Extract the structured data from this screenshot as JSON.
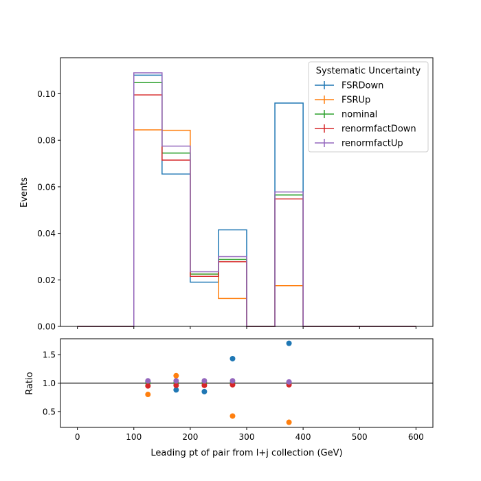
{
  "chart_data": [
    {
      "type": "step",
      "panel": "main",
      "title": "",
      "xlabel": "",
      "ylabel": "Events",
      "xlim": [
        -30,
        630
      ],
      "ylim": [
        0,
        0.1155
      ],
      "xticks": [
        0,
        100,
        200,
        300,
        400,
        500,
        600
      ],
      "yticks": [
        0.0,
        0.02,
        0.04,
        0.06,
        0.08,
        0.1
      ],
      "ytick_labels": [
        "0.00",
        "0.02",
        "0.04",
        "0.06",
        "0.08",
        "0.10"
      ],
      "bin_edges": [
        0,
        50,
        100,
        150,
        200,
        250,
        300,
        350,
        400,
        450,
        500,
        550,
        600
      ],
      "legend": {
        "title": "Systematic Uncertainty",
        "placement": "upper right"
      },
      "series": [
        {
          "name": "FSRDown",
          "color": "#1f77b4",
          "values": [
            0,
            0,
            0.108,
            0.0655,
            0.019,
            0.0415,
            0,
            0.096,
            0,
            0,
            0,
            0
          ]
        },
        {
          "name": "FSRUp",
          "color": "#ff7f0e",
          "values": [
            0,
            0,
            0.0845,
            0.0843,
            0.0225,
            0.012,
            0,
            0.0175,
            0,
            0,
            0,
            0
          ]
        },
        {
          "name": "nominal",
          "color": "#2ca02c",
          "values": [
            0,
            0,
            0.1048,
            0.0745,
            0.0225,
            0.0288,
            0,
            0.0565,
            0,
            0,
            0,
            0
          ]
        },
        {
          "name": "renormfactDown",
          "color": "#d62728",
          "values": [
            0,
            0,
            0.0995,
            0.0715,
            0.0215,
            0.0278,
            0,
            0.0548,
            0,
            0,
            0,
            0
          ]
        },
        {
          "name": "renormfactUp",
          "color": "#9467bd",
          "values": [
            0,
            0,
            0.109,
            0.0775,
            0.0235,
            0.03,
            0,
            0.0578,
            0,
            0,
            0,
            0
          ]
        }
      ]
    },
    {
      "type": "scatter",
      "panel": "ratio",
      "xlabel": "Leading pt of pair from l+j collection (GeV)",
      "ylabel": "Ratio",
      "xlim": [
        -30,
        630
      ],
      "ylim": [
        0.22,
        1.78
      ],
      "xticks": [
        0,
        100,
        200,
        300,
        400,
        500,
        600
      ],
      "yticks": [
        0.5,
        1.0,
        1.5
      ],
      "ytick_labels": [
        "0.5",
        "1.0",
        "1.5"
      ],
      "reference_line": 1.0,
      "x": [
        125,
        175,
        225,
        275,
        375
      ],
      "series": [
        {
          "name": "FSRDown",
          "color": "#1f77b4",
          "values": [
            1.03,
            0.88,
            0.85,
            1.43,
            1.7
          ]
        },
        {
          "name": "FSRUp",
          "color": "#ff7f0e",
          "values": [
            0.8,
            1.13,
            1.0,
            0.42,
            0.31
          ]
        },
        {
          "name": "nominal",
          "color": "#2ca02c",
          "values": [
            1.0,
            1.0,
            1.0,
            1.0,
            1.0
          ]
        },
        {
          "name": "renormfactDown",
          "color": "#d62728",
          "values": [
            0.95,
            0.96,
            0.96,
            0.97,
            0.97
          ]
        },
        {
          "name": "renormfactUp",
          "color": "#9467bd",
          "values": [
            1.04,
            1.04,
            1.04,
            1.04,
            1.02
          ]
        }
      ]
    }
  ]
}
